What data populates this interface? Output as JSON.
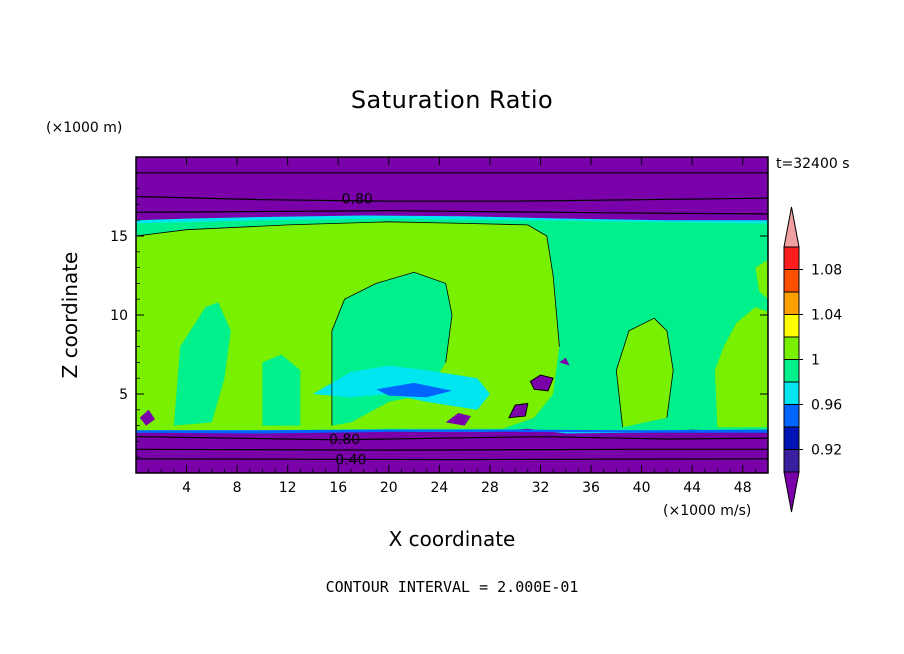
{
  "chart_data": {
    "type": "heatmap",
    "title": "Saturation Ratio",
    "xlabel": "X coordinate",
    "ylabel": "Z coordinate",
    "x_unit": "(×1000 m/s)",
    "y_unit": "(×1000 m)",
    "time_label": "t=32400 s",
    "footer": "CONTOUR INTERVAL = 2.000E-01",
    "xlim": [
      0,
      50
    ],
    "ylim": [
      0,
      20
    ],
    "x_ticks": [
      "4",
      "8",
      "12",
      "16",
      "20",
      "24",
      "28",
      "32",
      "36",
      "40",
      "44",
      "48"
    ],
    "y_ticks": [
      "5",
      "10",
      "15"
    ],
    "contour_labels": [
      {
        "text": "0.80",
        "x": 17.5,
        "z": 17.3
      },
      {
        "text": "0.80",
        "x": 16.5,
        "z": 2.1
      },
      {
        "text": "0.40",
        "x": 17.0,
        "z": 0.8
      }
    ],
    "colorbar": {
      "levels": [
        "0.92",
        "0.96",
        "1",
        "1.04",
        "1.08"
      ],
      "colors": [
        "#7a00aa",
        "#3a1ea0",
        "#0014b4",
        "#0064ff",
        "#00e6f0",
        "#00f08c",
        "#78f000",
        "#ffff00",
        "#ffa000",
        "#ff5000",
        "#ff1e1e",
        "#f0a0a0"
      ]
    },
    "colors": {
      "dry": "#7a00aa",
      "near_saturated": "#00f08c",
      "saturated": "#78f000",
      "transition": "#00e6f0",
      "slightly_dry": "#0064ff"
    }
  }
}
